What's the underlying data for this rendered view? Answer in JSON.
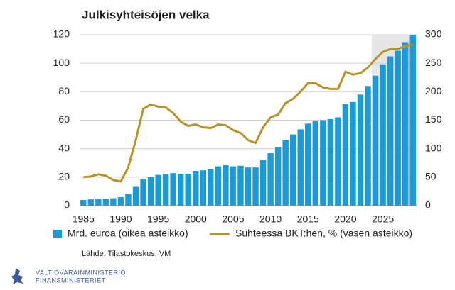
{
  "chart_data": {
    "type": "combo",
    "title": "Julkisyhteisöjen velka",
    "x": [
      1985,
      1986,
      1987,
      1988,
      1989,
      1990,
      1991,
      1992,
      1993,
      1994,
      1995,
      1996,
      1997,
      1998,
      1999,
      2000,
      2001,
      2002,
      2003,
      2004,
      2005,
      2006,
      2007,
      2008,
      2009,
      2010,
      2011,
      2012,
      2013,
      2014,
      2015,
      2016,
      2017,
      2018,
      2019,
      2020,
      2021,
      2022,
      2023,
      2024,
      2025,
      2026,
      2027,
      2028,
      2029
    ],
    "xlim": [
      1984.5,
      2029.5
    ],
    "xticks": [
      1985,
      1990,
      1995,
      2000,
      2005,
      2010,
      2015,
      2020,
      2025
    ],
    "ylim": [
      0,
      120
    ],
    "yticks": [
      0,
      20,
      40,
      60,
      80,
      100,
      120
    ],
    "y2lim": [
      0,
      300
    ],
    "y2ticks": [
      0,
      50,
      100,
      150,
      200,
      250,
      300
    ],
    "grid": true,
    "forecast_xlim": [
      2023.5,
      2029.5
    ],
    "forecast_color": "#e6e6e6",
    "series": [
      {
        "name": "Mrd. euroa (oikea asteikko)",
        "type": "bar",
        "axis": "y2",
        "color": "#1a9ad6",
        "values": [
          10,
          11,
          12,
          12,
          13,
          15,
          20,
          33,
          47,
          51,
          54,
          55,
          57,
          56,
          56,
          61,
          62,
          64,
          69,
          71,
          69,
          70,
          67,
          67,
          80,
          92,
          102,
          115,
          125,
          134,
          144,
          148,
          150,
          152,
          155,
          178,
          182,
          195,
          210,
          228,
          248,
          262,
          272,
          287,
          300
        ]
      },
      {
        "name": "Suhteessa BKT:hen, % (vasen asteikko)",
        "type": "line",
        "color": "#b8922a",
        "values": [
          20,
          20.5,
          22,
          21,
          18,
          17,
          27,
          46,
          68,
          71,
          69.5,
          69,
          65,
          59,
          56,
          57,
          55,
          54.5,
          57,
          56.5,
          53,
          51,
          46,
          44,
          55,
          62,
          64,
          72,
          75,
          80,
          86,
          86,
          83,
          82,
          82,
          94,
          92,
          93,
          97,
          103,
          108,
          110,
          110,
          112,
          113
        ]
      }
    ],
    "source": "Lähde: Tilastokeskus, VM"
  },
  "logo": {
    "line1": "VALTIOVARAINMINISTERIÖ",
    "line2": "FINANSMINISTERIET"
  }
}
